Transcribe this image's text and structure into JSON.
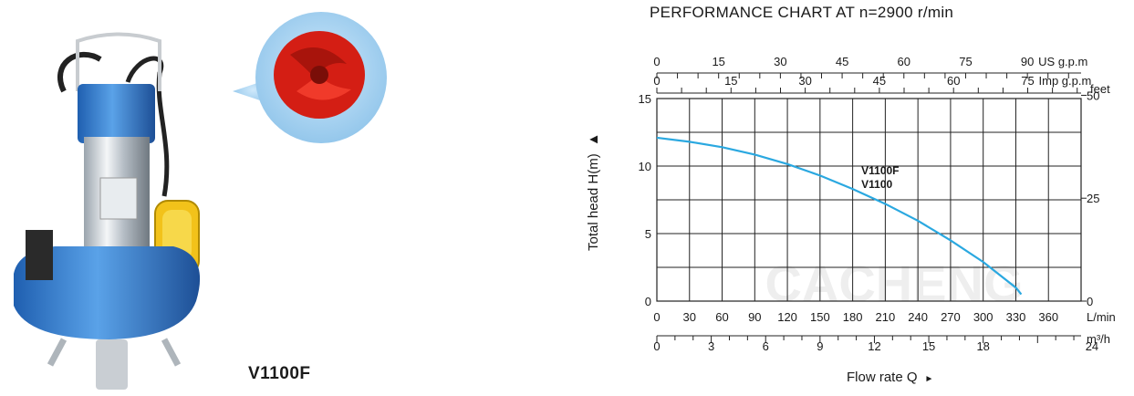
{
  "product": {
    "model": "V1100F"
  },
  "chart_data": {
    "type": "line",
    "title": "PERFORMANCE CHART AT n=2900 r/min",
    "ylabel": "Total head H(m)",
    "xlabel": "Flow rate Q",
    "ylim": [
      0,
      15
    ],
    "xlim": [
      0,
      390
    ],
    "grid": true,
    "x_unit": "L/min",
    "y_ticks": [
      "0",
      "5",
      "10",
      "15"
    ],
    "x_ticks_lmin": [
      "0",
      "30",
      "60",
      "90",
      "120",
      "150",
      "180",
      "210",
      "240",
      "270",
      "300",
      "330",
      "360"
    ],
    "x_ticks_m3h": [
      "0",
      "3",
      "6",
      "9",
      "12",
      "15",
      "18",
      "24"
    ],
    "x_unit_m3h": "m³/h",
    "top_ticks_us": [
      "0",
      "15",
      "30",
      "45",
      "60",
      "75",
      "90"
    ],
    "top_unit_us": "US g.p.m",
    "top_ticks_imp": [
      "0",
      "15",
      "30",
      "45",
      "60",
      "75"
    ],
    "top_unit_imp": "Imp g.p.m",
    "right_ticks_feet": [
      "0",
      "25",
      "50"
    ],
    "right_unit": "feet",
    "watermark": "CACHENG",
    "series": [
      {
        "name": "V1100F V1100",
        "labels": [
          "V1100F",
          "V1100"
        ],
        "color": "#2aa8e0",
        "x": [
          0,
          30,
          60,
          90,
          120,
          150,
          180,
          210,
          240,
          270,
          300,
          330,
          335
        ],
        "y": [
          12.1,
          11.8,
          11.4,
          10.85,
          10.15,
          9.3,
          8.3,
          7.2,
          5.95,
          4.5,
          2.9,
          1.0,
          0.5
        ]
      }
    ]
  }
}
